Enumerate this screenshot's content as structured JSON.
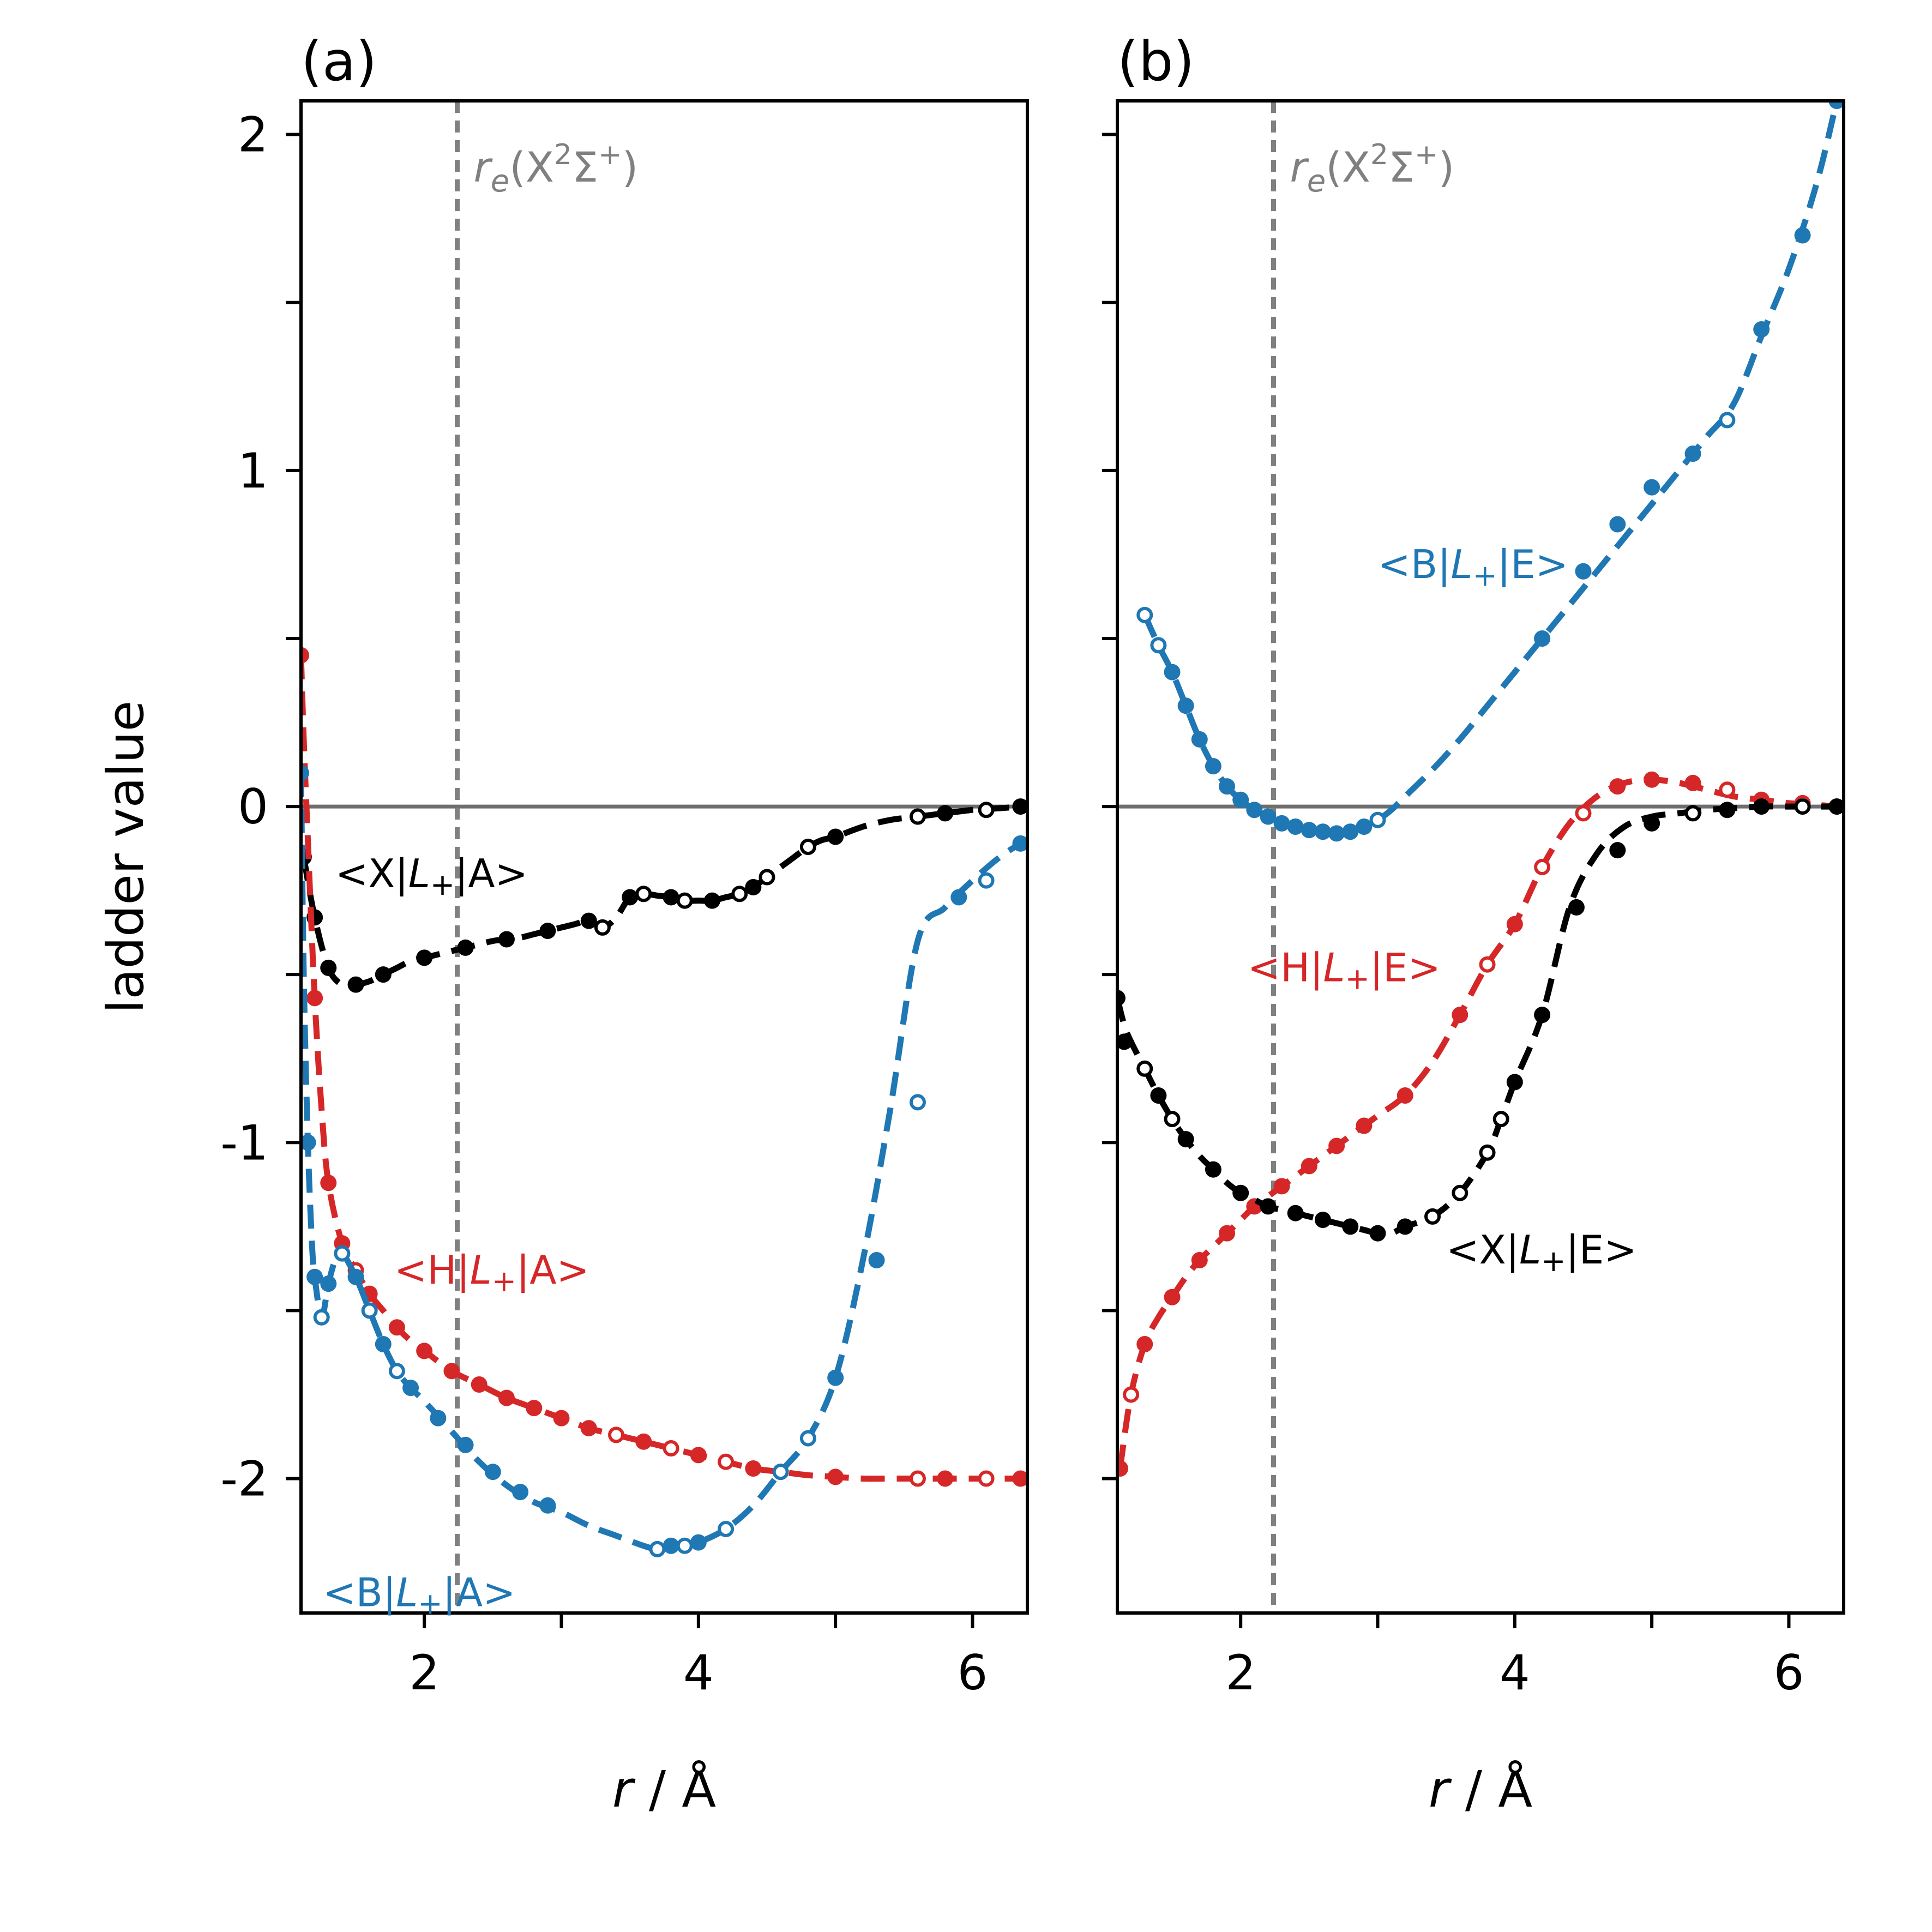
{
  "chart_data": [
    {
      "type": "line",
      "panel_label": "(a)",
      "xlabel_italic": "r",
      "xlabel_rest": " / Å",
      "ylabel": "ladder value",
      "xlim": [
        1.1,
        6.4
      ],
      "ylim": [
        -2.4,
        2.1
      ],
      "xticks": [
        2,
        3,
        4,
        5,
        6
      ],
      "xtick_labels": [
        "2",
        "",
        "4",
        "",
        "6"
      ],
      "yticks": [
        2,
        1.5,
        1,
        0.5,
        0,
        -0.5,
        -1,
        -1.5,
        -2
      ],
      "ytick_labels": [
        "2",
        "",
        "1",
        "",
        "0",
        "",
        "-1",
        "",
        "-2"
      ],
      "hline_y": 0,
      "vline_x": 2.24,
      "vline_label": {
        "sym": "r",
        "sub": "e",
        "open": "(X",
        "sup1": "2",
        "mid": "Σ",
        "sup2": "+",
        "close": ")"
      },
      "series": [
        {
          "name": "X-A",
          "color": "#000000",
          "annot": {
            "left": "<X|",
            "op": "L",
            "sub": "+",
            "right": "|A>",
            "at": [
              1.35,
              -0.24
            ]
          },
          "x": [
            1.12,
            1.2,
            1.3,
            1.4,
            1.5,
            1.6,
            1.7,
            1.8,
            1.9,
            2.0,
            2.1,
            2.2,
            2.3,
            2.4,
            2.5,
            2.6,
            2.7,
            2.8,
            2.9,
            3.0,
            3.1,
            3.2,
            3.3,
            3.4,
            3.5,
            3.6,
            3.7,
            3.8,
            3.9,
            4.0,
            4.1,
            4.2,
            4.3,
            4.4,
            4.5,
            4.6,
            4.7,
            4.8,
            4.9,
            5.0,
            5.2,
            5.4,
            5.6,
            5.8,
            6.0,
            6.2,
            6.35
          ],
          "y": [
            -0.15,
            -0.33,
            -0.48,
            -0.53,
            -0.53,
            -0.52,
            -0.5,
            -0.48,
            -0.46,
            -0.45,
            -0.44,
            -0.43,
            -0.42,
            -0.41,
            -0.4,
            -0.395,
            -0.39,
            -0.38,
            -0.37,
            -0.36,
            -0.35,
            -0.34,
            -0.36,
            -0.33,
            -0.27,
            -0.26,
            -0.265,
            -0.27,
            -0.28,
            -0.28,
            -0.28,
            -0.27,
            -0.26,
            -0.24,
            -0.21,
            -0.18,
            -0.15,
            -0.12,
            -0.1,
            -0.09,
            -0.06,
            -0.04,
            -0.03,
            -0.02,
            -0.01,
            -0.005,
            0.0
          ],
          "filled_x": [
            1.12,
            1.2,
            1.3,
            1.5,
            1.7,
            2.0,
            2.3,
            2.6,
            2.9,
            3.2,
            3.5,
            3.8,
            4.1,
            4.4,
            5.0,
            5.8,
            6.35
          ],
          "filled_y": [
            -0.15,
            -0.33,
            -0.48,
            -0.53,
            -0.5,
            -0.45,
            -0.42,
            -0.395,
            -0.37,
            -0.34,
            -0.27,
            -0.27,
            -0.28,
            -0.24,
            -0.09,
            -0.02,
            0.0
          ],
          "open_x": [
            3.3,
            3.6,
            3.9,
            4.3,
            4.5,
            4.8,
            5.6,
            6.1
          ],
          "open_y": [
            -0.36,
            -0.26,
            -0.28,
            -0.26,
            -0.21,
            -0.12,
            -0.03,
            -0.01
          ]
        },
        {
          "name": "H-A",
          "color": "#d62728",
          "annot": {
            "left": "<H|",
            "op": "L",
            "sub": "+",
            "right": "|A>",
            "at": [
              1.78,
              -1.42
            ]
          },
          "x": [
            1.1,
            1.12,
            1.15,
            1.2,
            1.25,
            1.3,
            1.4,
            1.5,
            1.6,
            1.7,
            1.8,
            1.9,
            2.0,
            2.2,
            2.4,
            2.6,
            2.8,
            3.0,
            3.2,
            3.4,
            3.6,
            3.8,
            4.0,
            4.2,
            4.4,
            4.6,
            4.8,
            5.0,
            5.2,
            5.4,
            5.6,
            5.8,
            6.0,
            6.2,
            6.35
          ],
          "y": [
            0.45,
            0.2,
            -0.1,
            -0.57,
            -0.9,
            -1.12,
            -1.3,
            -1.38,
            -1.45,
            -1.5,
            -1.55,
            -1.59,
            -1.62,
            -1.68,
            -1.72,
            -1.76,
            -1.79,
            -1.82,
            -1.85,
            -1.87,
            -1.89,
            -1.91,
            -1.93,
            -1.95,
            -1.97,
            -1.98,
            -1.99,
            -1.995,
            -2.0,
            -2.0,
            -2.0,
            -2.0,
            -2.0,
            -2.0,
            -2.0
          ],
          "filled_x": [
            1.1,
            1.2,
            1.3,
            1.4,
            1.6,
            1.8,
            2.0,
            2.2,
            2.4,
            2.6,
            2.8,
            3.0,
            3.2,
            3.6,
            4.0,
            4.4,
            5.0,
            5.8,
            6.35
          ],
          "filled_y": [
            0.45,
            -0.57,
            -1.12,
            -1.3,
            -1.45,
            -1.55,
            -1.62,
            -1.68,
            -1.72,
            -1.76,
            -1.79,
            -1.82,
            -1.85,
            -1.89,
            -1.93,
            -1.97,
            -1.995,
            -2.0,
            -2.0
          ],
          "open_x": [
            1.5,
            3.4,
            3.8,
            4.2,
            4.6,
            5.6,
            6.1
          ],
          "open_y": [
            -1.38,
            -1.87,
            -1.91,
            -1.95,
            -1.98,
            -2.0,
            -2.0
          ]
        },
        {
          "name": "B-A",
          "color": "#1f77b4",
          "annot": {
            "left": "<B|",
            "op": "L",
            "sub": "+",
            "right": "|A>",
            "at": [
              1.26,
              -2.38
            ]
          },
          "x": [
            1.1,
            1.12,
            1.15,
            1.18,
            1.2,
            1.25,
            1.3,
            1.35,
            1.4,
            1.5,
            1.6,
            1.7,
            1.8,
            1.9,
            2.0,
            2.2,
            2.4,
            2.6,
            2.8,
            3.0,
            3.2,
            3.4,
            3.6,
            3.7,
            3.8,
            3.9,
            4.0,
            4.2,
            4.4,
            4.6,
            4.8,
            5.0,
            5.2,
            5.4,
            5.6,
            5.8,
            6.0,
            6.2,
            6.35
          ],
          "y": [
            0.1,
            -0.5,
            -1.0,
            -1.3,
            -1.4,
            -1.52,
            -1.42,
            -1.35,
            -1.33,
            -1.4,
            -1.5,
            -1.6,
            -1.68,
            -1.73,
            -1.77,
            -1.86,
            -1.95,
            -2.02,
            -2.07,
            -2.1,
            -2.14,
            -2.17,
            -2.2,
            -2.21,
            -2.2,
            -2.2,
            -2.19,
            -2.15,
            -2.08,
            -1.98,
            -1.88,
            -1.7,
            -1.35,
            -0.9,
            -0.4,
            -0.3,
            -0.22,
            -0.15,
            -0.11
          ],
          "filled_x": [
            1.1,
            1.15,
            1.2,
            1.3,
            1.5,
            1.7,
            1.9,
            2.1,
            2.3,
            2.5,
            2.7,
            2.9,
            3.8,
            4.0,
            5.0,
            5.3,
            5.9,
            6.35
          ],
          "filled_y": [
            0.1,
            -1.0,
            -1.4,
            -1.42,
            -1.4,
            -1.6,
            -1.73,
            -1.82,
            -1.9,
            -1.98,
            -2.04,
            -2.08,
            -2.2,
            -2.19,
            -1.7,
            -1.35,
            -0.27,
            -0.11
          ],
          "open_x": [
            1.25,
            1.4,
            1.6,
            1.8,
            3.7,
            3.9,
            4.2,
            4.6,
            4.8,
            5.6,
            6.1
          ],
          "open_y": [
            -1.52,
            -1.33,
            -1.5,
            -1.68,
            -2.21,
            -2.2,
            -2.15,
            -1.98,
            -1.88,
            -0.88,
            -0.22
          ]
        }
      ]
    },
    {
      "type": "line",
      "panel_label": "(b)",
      "xlabel_italic": "r",
      "xlabel_rest": " / Å",
      "xlim": [
        1.1,
        6.4
      ],
      "ylim": [
        -2.4,
        2.1
      ],
      "xticks": [
        2,
        3,
        4,
        5,
        6
      ],
      "xtick_labels": [
        "2",
        "",
        "4",
        "",
        "6"
      ],
      "yticks": [
        2,
        1.5,
        1,
        0.5,
        0,
        -0.5,
        -1,
        -1.5,
        -2
      ],
      "hline_y": 0,
      "vline_x": 2.24,
      "vline_label": {
        "sym": "r",
        "sub": "e",
        "open": "(X",
        "sup1": "2",
        "mid": "Σ",
        "sup2": "+",
        "close": ")"
      },
      "series": [
        {
          "name": "B-E",
          "color": "#1f77b4",
          "annot": {
            "left": "<B|",
            "op": "L",
            "sub": "+",
            "right": "|E>",
            "at": [
              3.0,
              0.68
            ]
          },
          "x": [
            1.3,
            1.4,
            1.5,
            1.6,
            1.7,
            1.8,
            1.9,
            2.0,
            2.1,
            2.2,
            2.3,
            2.4,
            2.5,
            2.6,
            2.7,
            2.8,
            2.9,
            3.0,
            3.1,
            3.2,
            3.4,
            3.6,
            3.8,
            4.0,
            4.2,
            4.4,
            4.6,
            4.8,
            5.0,
            5.2,
            5.4,
            5.6,
            5.8,
            6.0,
            6.2,
            6.35
          ],
          "y": [
            0.57,
            0.48,
            0.4,
            0.3,
            0.2,
            0.12,
            0.06,
            0.02,
            -0.01,
            -0.03,
            -0.05,
            -0.06,
            -0.07,
            -0.075,
            -0.08,
            -0.075,
            -0.06,
            -0.04,
            -0.01,
            0.03,
            0.11,
            0.2,
            0.3,
            0.4,
            0.5,
            0.6,
            0.7,
            0.8,
            0.9,
            1.0,
            1.1,
            1.2,
            1.4,
            1.6,
            1.85,
            2.1
          ],
          "filled_x": [
            1.5,
            1.6,
            1.7,
            1.8,
            1.9,
            2.0,
            2.1,
            2.2,
            2.3,
            2.4,
            2.5,
            2.6,
            2.7,
            2.8,
            2.9,
            4.2,
            4.5,
            4.75,
            5.0,
            5.3,
            5.8,
            6.1,
            6.35
          ],
          "filled_y": [
            0.4,
            0.3,
            0.2,
            0.12,
            0.06,
            0.02,
            -0.01,
            -0.03,
            -0.05,
            -0.06,
            -0.07,
            -0.075,
            -0.08,
            -0.075,
            -0.06,
            0.5,
            0.7,
            0.84,
            0.95,
            1.05,
            1.42,
            1.7,
            2.1
          ],
          "open_x": [
            1.3,
            1.4,
            3.0,
            5.55
          ],
          "open_y": [
            0.57,
            0.48,
            -0.04,
            1.15
          ]
        },
        {
          "name": "H-E",
          "color": "#d62728",
          "annot": {
            "left": "<H|",
            "op": "L",
            "sub": "+",
            "right": "|E>",
            "at": [
              2.05,
              -0.52
            ]
          },
          "x": [
            1.12,
            1.2,
            1.3,
            1.4,
            1.5,
            1.6,
            1.7,
            1.8,
            1.9,
            2.0,
            2.1,
            2.2,
            2.3,
            2.4,
            2.5,
            2.6,
            2.7,
            2.8,
            2.9,
            3.0,
            3.2,
            3.4,
            3.6,
            3.8,
            4.0,
            4.2,
            4.4,
            4.6,
            4.8,
            5.0,
            5.2,
            5.4,
            5.6,
            5.8,
            6.0,
            6.2,
            6.35
          ],
          "y": [
            -1.97,
            -1.75,
            -1.6,
            -1.52,
            -1.46,
            -1.4,
            -1.35,
            -1.31,
            -1.27,
            -1.23,
            -1.19,
            -1.16,
            -1.13,
            -1.1,
            -1.07,
            -1.04,
            -1.01,
            -0.98,
            -0.95,
            -0.92,
            -0.86,
            -0.76,
            -0.62,
            -0.47,
            -0.35,
            -0.18,
            -0.05,
            0.03,
            0.07,
            0.08,
            0.07,
            0.05,
            0.03,
            0.02,
            0.01,
            0.005,
            0.0
          ],
          "filled_x": [
            1.12,
            1.3,
            1.5,
            1.7,
            1.9,
            2.1,
            2.3,
            2.5,
            2.7,
            2.9,
            3.2,
            3.6,
            4.0,
            4.75,
            5.0,
            5.3,
            5.8,
            6.35
          ],
          "filled_y": [
            -1.97,
            -1.6,
            -1.46,
            -1.35,
            -1.27,
            -1.19,
            -1.13,
            -1.07,
            -1.01,
            -0.95,
            -0.86,
            -0.62,
            -0.35,
            0.06,
            0.08,
            0.07,
            0.02,
            0.0
          ],
          "open_x": [
            1.2,
            3.8,
            4.2,
            4.5,
            5.55,
            6.1
          ],
          "open_y": [
            -1.75,
            -0.47,
            -0.18,
            -0.02,
            0.05,
            0.01
          ]
        },
        {
          "name": "X-E",
          "color": "#000000",
          "annot": {
            "left": "<X|",
            "op": "L",
            "sub": "+",
            "right": "|E>",
            "at": [
              3.5,
              -1.36
            ]
          },
          "x": [
            1.1,
            1.15,
            1.2,
            1.3,
            1.4,
            1.5,
            1.6,
            1.7,
            1.8,
            1.9,
            2.0,
            2.1,
            2.2,
            2.3,
            2.4,
            2.5,
            2.6,
            2.7,
            2.8,
            2.9,
            3.0,
            3.1,
            3.2,
            3.4,
            3.6,
            3.8,
            3.9,
            4.0,
            4.2,
            4.4,
            4.6,
            4.8,
            5.0,
            5.2,
            5.4,
            5.6,
            5.8,
            6.0,
            6.2,
            6.35
          ],
          "y": [
            -0.57,
            -0.65,
            -0.7,
            -0.78,
            -0.86,
            -0.93,
            -0.99,
            -1.04,
            -1.08,
            -1.12,
            -1.15,
            -1.17,
            -1.19,
            -1.2,
            -1.21,
            -1.22,
            -1.23,
            -1.24,
            -1.25,
            -1.26,
            -1.27,
            -1.27,
            -1.25,
            -1.22,
            -1.15,
            -1.03,
            -0.93,
            -0.82,
            -0.62,
            -0.3,
            -0.14,
            -0.06,
            -0.03,
            -0.02,
            -0.01,
            -0.005,
            0.0,
            0.0,
            0.0,
            0.0
          ],
          "filled_x": [
            1.1,
            1.15,
            1.4,
            1.6,
            1.8,
            2.0,
            2.2,
            2.4,
            2.6,
            2.8,
            3.0,
            3.2,
            4.0,
            4.2,
            4.45,
            4.75,
            5.0,
            5.55,
            5.8,
            6.35
          ],
          "filled_y": [
            -0.57,
            -0.7,
            -0.86,
            -0.99,
            -1.08,
            -1.15,
            -1.19,
            -1.21,
            -1.23,
            -1.25,
            -1.27,
            -1.25,
            -0.82,
            -0.62,
            -0.3,
            -0.13,
            -0.05,
            -0.01,
            0.0,
            0.0
          ],
          "open_x": [
            1.3,
            1.5,
            3.4,
            3.6,
            3.8,
            3.9,
            5.3,
            6.1
          ],
          "open_y": [
            -0.78,
            -0.93,
            -1.22,
            -1.15,
            -1.03,
            -0.93,
            -0.02,
            0.0
          ]
        }
      ]
    }
  ]
}
